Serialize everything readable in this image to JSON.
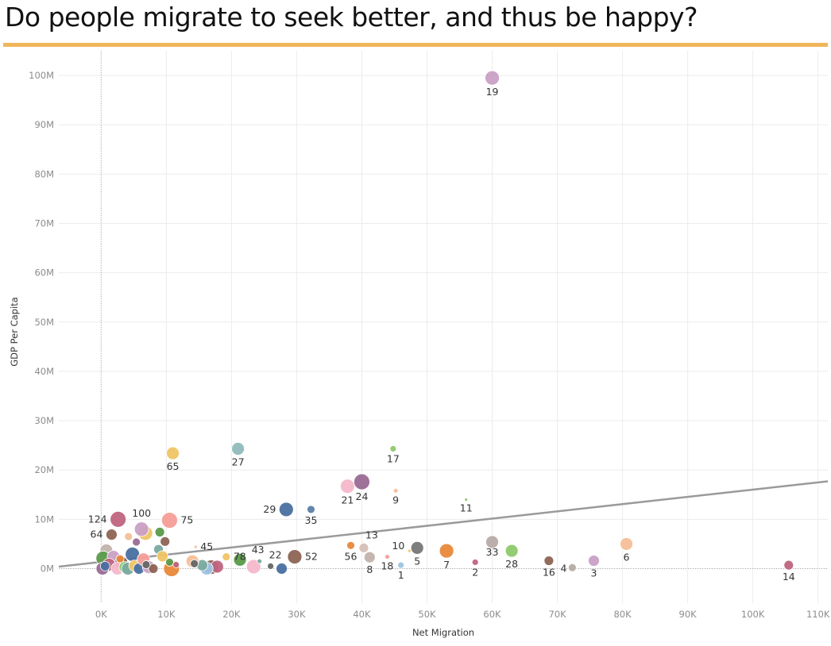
{
  "title": "Do people migrate to seek better, and thus be happy?",
  "colors": {
    "title_rule": "#f0b75a",
    "trend": "#9a9a9a",
    "grid": "#ececec"
  },
  "chart_data": {
    "type": "scatter",
    "title": "Do people migrate to seek better, and thus be happy?",
    "xlabel": "Net Migration",
    "ylabel": "GDP Per Capita",
    "xlim": [
      -6500,
      111500
    ],
    "ylim": [
      -7000000,
      105000000
    ],
    "x_ticks": [
      0,
      10000,
      20000,
      30000,
      40000,
      50000,
      60000,
      70000,
      80000,
      90000,
      100000,
      110000
    ],
    "x_tick_labels": [
      "0K",
      "10K",
      "20K",
      "30K",
      "40K",
      "50K",
      "60K",
      "70K",
      "80K",
      "90K",
      "100K",
      "110K"
    ],
    "y_ticks": [
      0,
      10000000,
      20000000,
      30000000,
      40000000,
      50000000,
      60000000,
      70000000,
      80000000,
      90000000,
      100000000
    ],
    "y_tick_labels": [
      "0M",
      "10M",
      "20M",
      "30M",
      "40M",
      "50M",
      "60M",
      "70M",
      "80M",
      "90M",
      "100M"
    ],
    "grid": true,
    "trendline": {
      "x": [
        -6500,
        111500
      ],
      "y": [
        400000,
        17700000
      ]
    },
    "points": [
      {
        "label": "19",
        "x": 60000,
        "y": 99500000,
        "size": 9,
        "color": "#c9a0c6"
      },
      {
        "label": "27",
        "x": 21000,
        "y": 24300000,
        "size": 8,
        "color": "#8fbcbb"
      },
      {
        "label": "65",
        "x": 11000,
        "y": 23400000,
        "size": 8,
        "color": "#f0c465"
      },
      {
        "label": "17",
        "x": 44800,
        "y": 24300000,
        "size": 4,
        "color": "#8dc96b"
      },
      {
        "label": "21",
        "x": 37800,
        "y": 16700000,
        "size": 9,
        "color": "#f4b8cb"
      },
      {
        "label": "24",
        "x": 40000,
        "y": 17600000,
        "size": 10,
        "color": "#9a6a94"
      },
      {
        "label": "9",
        "x": 45200,
        "y": 15800000,
        "size": 3,
        "color": "#f4bf98"
      },
      {
        "label": "11",
        "x": 56000,
        "y": 14000000,
        "size": 2,
        "color": "#8dc96b"
      },
      {
        "label": "29",
        "x": 28400,
        "y": 12000000,
        "size": 9,
        "color": "#4a70a0"
      },
      {
        "label": "35",
        "x": 32200,
        "y": 12000000,
        "size": 5,
        "color": "#5c7fa8"
      },
      {
        "label": "124",
        "x": 2600,
        "y": 10000000,
        "size": 10,
        "color": "#c0647e"
      },
      {
        "label": "100",
        "x": 6200,
        "y": 8000000,
        "size": 9,
        "color": "#c9a0c6"
      },
      {
        "label": "75",
        "x": 10500,
        "y": 9800000,
        "size": 10,
        "color": "#f59e98"
      },
      {
        "label": "64",
        "x": 1600,
        "y": 6900000,
        "size": 7,
        "color": "#8c6454"
      },
      {
        "label": "45",
        "x": 14500,
        "y": 4400000,
        "size": 2,
        "color": "#f4bf98"
      },
      {
        "label": "78",
        "x": 19200,
        "y": 2400000,
        "size": 5,
        "color": "#f0c465"
      },
      {
        "label": "43",
        "x": 24300,
        "y": 1500000,
        "size": 3,
        "color": "#7aaa9f"
      },
      {
        "label": "22",
        "x": 26000,
        "y": 500000,
        "size": 4,
        "color": "#666666"
      },
      {
        "label": "52",
        "x": 29700,
        "y": 2400000,
        "size": 9,
        "color": "#8c6454"
      },
      {
        "label": "13",
        "x": 40300,
        "y": 4200000,
        "size": 6,
        "color": "#d6c0b6"
      },
      {
        "label": "56",
        "x": 38300,
        "y": 4700000,
        "size": 5,
        "color": "#e9883a"
      },
      {
        "label": "8",
        "x": 41200,
        "y": 2300000,
        "size": 7,
        "color": "#c2b3ac"
      },
      {
        "label": "18",
        "x": 43900,
        "y": 2400000,
        "size": 3,
        "color": "#f59e98"
      },
      {
        "label": "10",
        "x": 47300,
        "y": 3600000,
        "size": 2,
        "color": "#f0c465"
      },
      {
        "label": "1",
        "x": 46000,
        "y": 700000,
        "size": 4,
        "color": "#9dc4e2"
      },
      {
        "label": "5",
        "x": 48500,
        "y": 4200000,
        "size": 8,
        "color": "#777777"
      },
      {
        "label": "7",
        "x": 53000,
        "y": 3600000,
        "size": 9,
        "color": "#e9883a"
      },
      {
        "label": "2",
        "x": 57400,
        "y": 1300000,
        "size": 4,
        "color": "#c0647e"
      },
      {
        "label": "33",
        "x": 60000,
        "y": 5400000,
        "size": 8,
        "color": "#b8aba6"
      },
      {
        "label": "28",
        "x": 63000,
        "y": 3600000,
        "size": 8,
        "color": "#8dc96b"
      },
      {
        "label": "16",
        "x": 68700,
        "y": 1600000,
        "size": 6,
        "color": "#8c6454"
      },
      {
        "label": "4",
        "x": 72300,
        "y": 200000,
        "size": 5,
        "color": "#b8aba6"
      },
      {
        "label": "3",
        "x": 75600,
        "y": 1600000,
        "size": 7,
        "color": "#c9a0c6"
      },
      {
        "label": "6",
        "x": 80600,
        "y": 5000000,
        "size": 8,
        "color": "#f4bf98"
      },
      {
        "label": "14",
        "x": 105500,
        "y": 700000,
        "size": 6,
        "color": "#c0647e"
      },
      {
        "label": "",
        "x": 10800,
        "y": 0,
        "size": 10,
        "color": "#e9883a"
      },
      {
        "label": "",
        "x": 23400,
        "y": 400000,
        "size": 9,
        "color": "#f4b8cb"
      },
      {
        "label": "",
        "x": 27700,
        "y": 0,
        "size": 7,
        "color": "#4a70a0"
      },
      {
        "label": "",
        "x": 16900,
        "y": 300000,
        "size": 9,
        "color": "#8c6454"
      },
      {
        "label": "",
        "x": 17800,
        "y": 400000,
        "size": 8,
        "color": "#c0647e"
      },
      {
        "label": "",
        "x": 16200,
        "y": 0,
        "size": 8,
        "color": "#9dc4e2"
      },
      {
        "label": "",
        "x": 15500,
        "y": 700000,
        "size": 7,
        "color": "#7aaa9f"
      },
      {
        "label": "",
        "x": 14000,
        "y": 1500000,
        "size": 8,
        "color": "#f4bf98"
      },
      {
        "label": "",
        "x": 14300,
        "y": 1000000,
        "size": 5,
        "color": "#666666"
      },
      {
        "label": "",
        "x": 21300,
        "y": 1800000,
        "size": 8,
        "color": "#5a9a4a"
      },
      {
        "label": "",
        "x": 4800,
        "y": 2900000,
        "size": 9,
        "color": "#4a70a0"
      },
      {
        "label": "",
        "x": 6800,
        "y": 7200000,
        "size": 9,
        "color": "#f0c465"
      },
      {
        "label": "",
        "x": 9000,
        "y": 7400000,
        "size": 6,
        "color": "#5a9a4a"
      },
      {
        "label": "",
        "x": 9800,
        "y": 5500000,
        "size": 6,
        "color": "#8c6454"
      },
      {
        "label": "",
        "x": 4200,
        "y": 6500000,
        "size": 5,
        "color": "#f4bf98"
      },
      {
        "label": "",
        "x": 5400,
        "y": 5400000,
        "size": 5,
        "color": "#9a6a94"
      },
      {
        "label": "",
        "x": 8800,
        "y": 3900000,
        "size": 6,
        "color": "#7aaa9f"
      },
      {
        "label": "",
        "x": 9400,
        "y": 2500000,
        "size": 7,
        "color": "#f0c465"
      },
      {
        "label": "",
        "x": 10500,
        "y": 1300000,
        "size": 5,
        "color": "#5a9a4a"
      },
      {
        "label": "",
        "x": 11500,
        "y": 800000,
        "size": 4,
        "color": "#c0647e"
      },
      {
        "label": "",
        "x": 800,
        "y": 3700000,
        "size": 8,
        "color": "#c2b3ac"
      },
      {
        "label": "",
        "x": 300,
        "y": 2100000,
        "size": 9,
        "color": "#5a9a4a"
      },
      {
        "label": "",
        "x": 1900,
        "y": 2400000,
        "size": 8,
        "color": "#c9a0c6"
      },
      {
        "label": "",
        "x": 3100,
        "y": 1200000,
        "size": 8,
        "color": "#8c6454"
      },
      {
        "label": "",
        "x": 1200,
        "y": 800000,
        "size": 8,
        "color": "#c0647e"
      },
      {
        "label": "",
        "x": 200,
        "y": 0,
        "size": 8,
        "color": "#9a6a94"
      },
      {
        "label": "",
        "x": 2500,
        "y": 0,
        "size": 8,
        "color": "#f4b8cb"
      },
      {
        "label": "",
        "x": 3600,
        "y": 300000,
        "size": 7,
        "color": "#8dc96b"
      },
      {
        "label": "",
        "x": 4100,
        "y": 0,
        "size": 8,
        "color": "#7aaa9f"
      },
      {
        "label": "",
        "x": 5100,
        "y": 600000,
        "size": 7,
        "color": "#f0c465"
      },
      {
        "label": "",
        "x": 5800,
        "y": 0,
        "size": 7,
        "color": "#4a70a0"
      },
      {
        "label": "",
        "x": 6500,
        "y": 1900000,
        "size": 8,
        "color": "#f59e98"
      },
      {
        "label": "",
        "x": 7300,
        "y": 300000,
        "size": 8,
        "color": "#c9a0c6"
      },
      {
        "label": "",
        "x": 8000,
        "y": 0,
        "size": 6,
        "color": "#8c6454"
      },
      {
        "label": "",
        "x": 6900,
        "y": 800000,
        "size": 5,
        "color": "#666666"
      },
      {
        "label": "",
        "x": 600,
        "y": 500000,
        "size": 6,
        "color": "#4a70a0"
      },
      {
        "label": "",
        "x": 2900,
        "y": 2000000,
        "size": 5,
        "color": "#e9883a"
      }
    ]
  }
}
